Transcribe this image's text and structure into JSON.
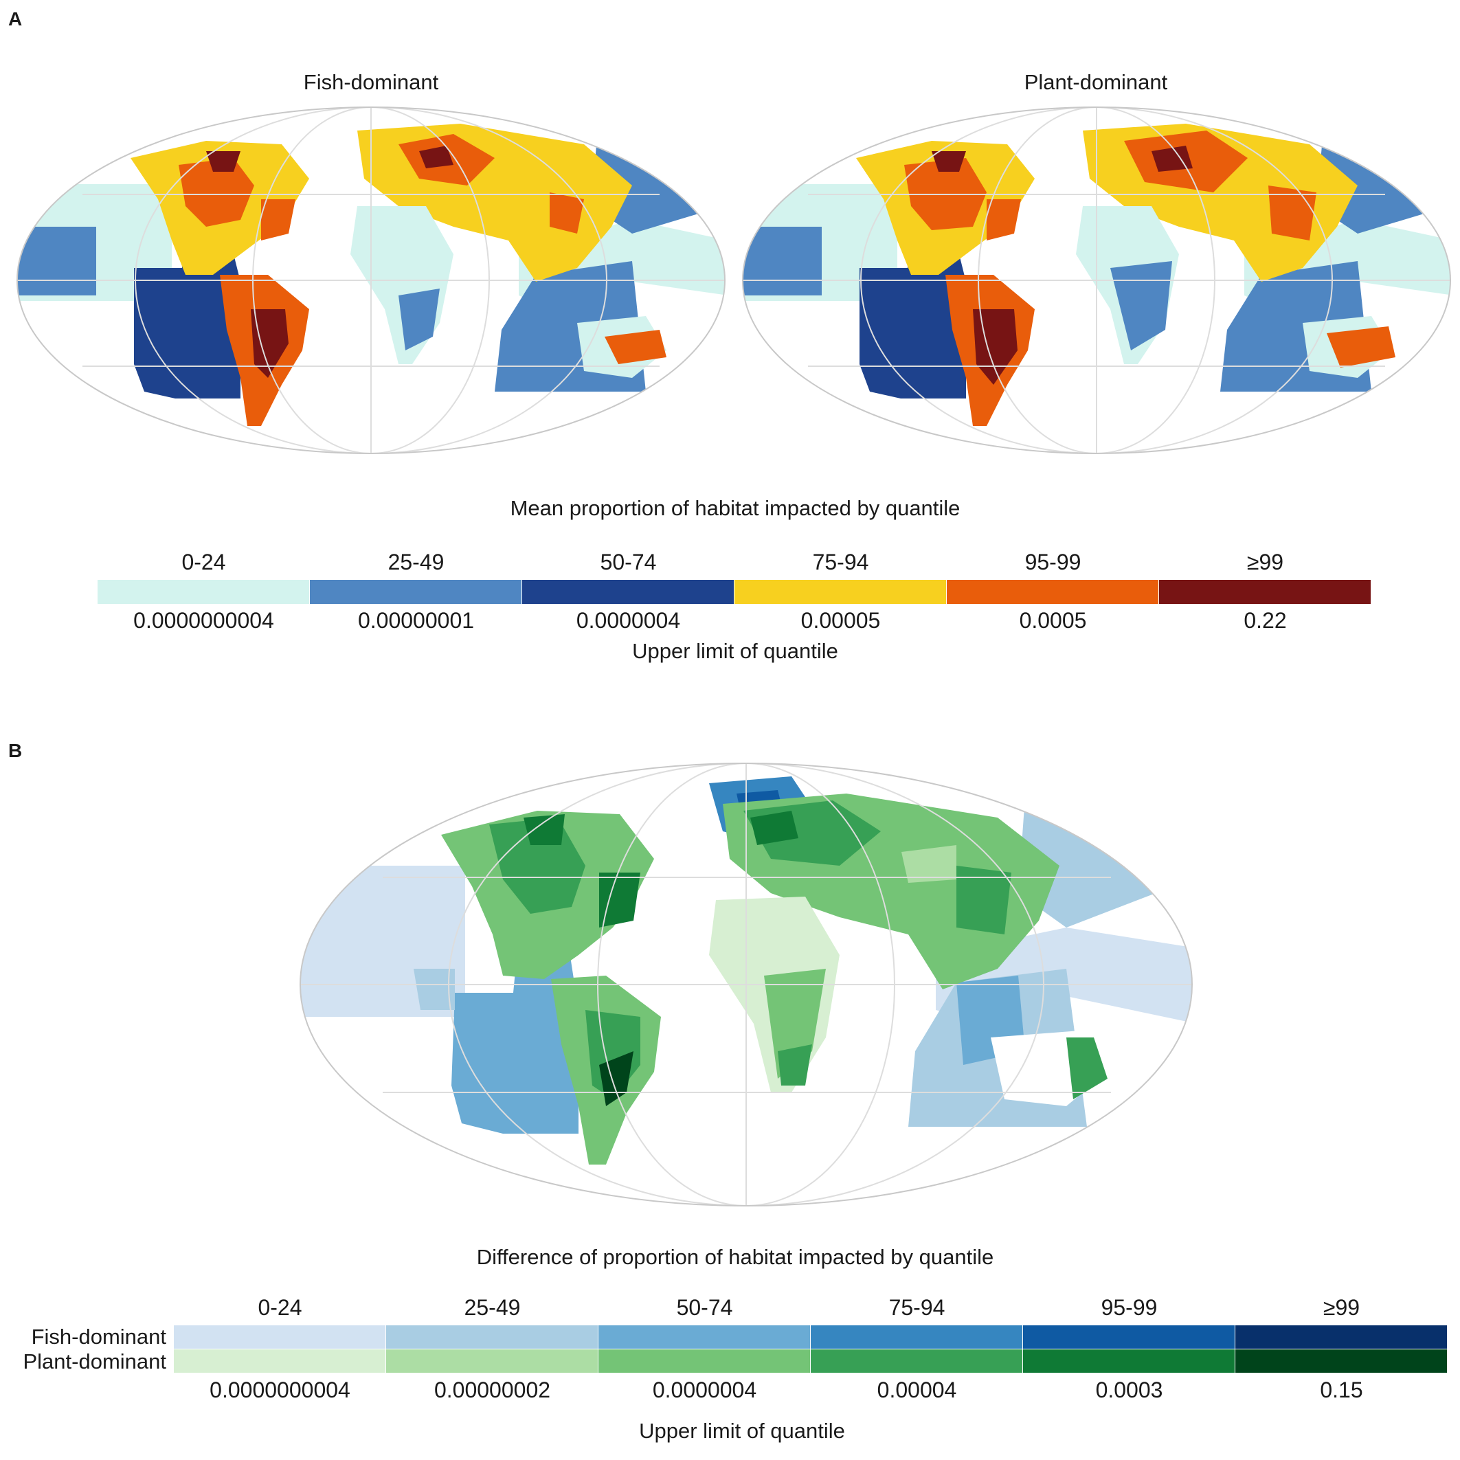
{
  "panel_a": {
    "label": "A",
    "maps": [
      {
        "title": "Fish-dominant"
      },
      {
        "title": "Plant-dominant"
      }
    ],
    "legend": {
      "title": "Mean proportion of habitat impacted by quantile",
      "bins": [
        {
          "quantile": "0-24",
          "upper_limit": "0.0000000004",
          "color": "#d3f3ee"
        },
        {
          "quantile": "25-49",
          "upper_limit": "0.00000001",
          "color": "#4f86c2"
        },
        {
          "quantile": "50-74",
          "upper_limit": "0.0000004",
          "color": "#1e428d"
        },
        {
          "quantile": "75-94",
          "upper_limit": "0.00005",
          "color": "#f7d01f"
        },
        {
          "quantile": "95-99",
          "upper_limit": "0.0005",
          "color": "#e95d0b"
        },
        {
          "quantile": "≥99",
          "upper_limit": "0.22",
          "color": "#771414"
        }
      ],
      "axis_label": "Upper limit of quantile"
    }
  },
  "panel_b": {
    "label": "B",
    "legend": {
      "title": "Difference of proportion of habitat impacted by quantile",
      "row_labels": [
        "Fish-dominant",
        "Plant-dominant"
      ],
      "bins": [
        {
          "quantile": "0-24",
          "upper_limit": "0.0000000004",
          "fish_color": "#d2e2f2",
          "plant_color": "#d7efd2"
        },
        {
          "quantile": "25-49",
          "upper_limit": "0.00000002",
          "fish_color": "#a9cde3",
          "plant_color": "#acdda4"
        },
        {
          "quantile": "50-74",
          "upper_limit": "0.0000004",
          "fish_color": "#6aabd4",
          "plant_color": "#74c476"
        },
        {
          "quantile": "75-94",
          "upper_limit": "0.00004",
          "fish_color": "#3686c0",
          "plant_color": "#37a055"
        },
        {
          "quantile": "95-99",
          "upper_limit": "0.0003",
          "fish_color": "#0f5aa3",
          "plant_color": "#0f7a35"
        },
        {
          "quantile": "≥99",
          "upper_limit": "0.15",
          "fish_color": "#08306b",
          "plant_color": "#00441b"
        }
      ],
      "axis_label": "Upper limit of quantile"
    }
  }
}
